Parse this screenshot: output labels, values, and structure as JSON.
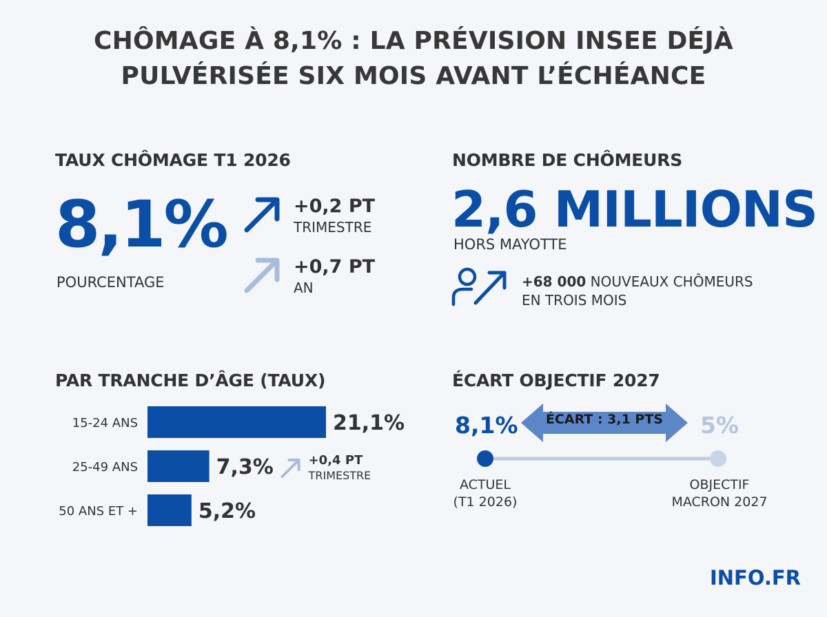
{
  "title": {
    "line1": "CHÔMAGE À 8,1% : LA PRÉVISION INSEE DÉJÀ",
    "line2": "PULVÉRISÉE SIX MOIS AVANT L’ÉCHÉANCE"
  },
  "rate": {
    "heading": "TAUX CHÔMAGE T1 2026",
    "value": "8,1%",
    "unit": "POURCENTAGE",
    "quarter_change": {
      "value": "+0,2 PT",
      "label": "TRIMESTRE"
    },
    "year_change": {
      "value": "+0,7 PT",
      "label": "AN"
    }
  },
  "count": {
    "heading": "NOMBRE DE CHÔMEURS",
    "value": "2,6 MILLIONS",
    "note": "HORS MAYOTTE",
    "new_value": "+68 000",
    "new_label": "NOUVEAUX CHÔMEURS",
    "new_label2": "EN TROIS MOIS",
    "icon": "person-up-arrow-icon"
  },
  "chart_data": {
    "type": "bar",
    "orientation": "horizontal",
    "title": "PAR TRANCHE D’ÂGE (TAUX)",
    "categories": [
      "15-24 ANS",
      "25-49 ANS",
      "50 ANS ET +"
    ],
    "values": [
      21.1,
      7.3,
      5.2
    ],
    "value_labels": [
      "21,1%",
      "7,3%",
      "5,2%"
    ],
    "annotation": {
      "category": "25-49 ANS",
      "value": "+0,4 PT",
      "label": "TRIMESTRE"
    },
    "bar_color": "#0a4ea6"
  },
  "gap": {
    "heading": "ÉCART OBJECTIF 2027",
    "actual_value": "8,1%",
    "target_value": "5%",
    "gap_label": "ÉCART : 3,1 PTS",
    "actual_label_1": "ACTUEL",
    "actual_label_2": "(T1 2026)",
    "target_label_1": "OBJECTIF",
    "target_label_2": "MACRON 2027"
  },
  "brand": "INFO.FR",
  "colors": {
    "accent": "#0a4ea6",
    "light_accent": "#a9bcdc",
    "muted": "#b5c6de"
  }
}
